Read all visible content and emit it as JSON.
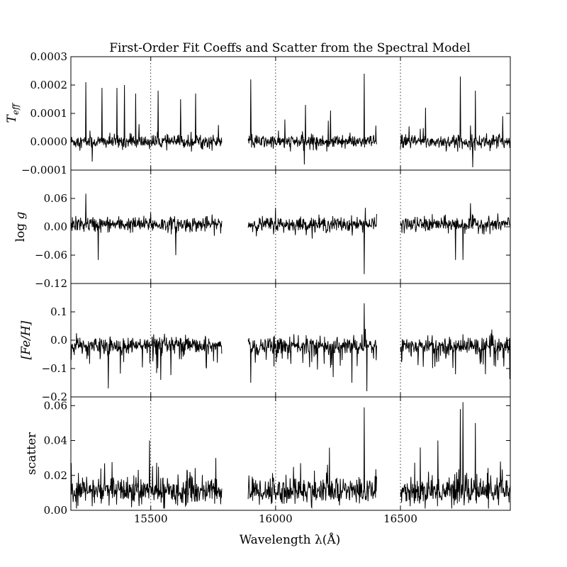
{
  "colors": {
    "line": "#000000",
    "background": "#ffffff"
  },
  "chart_data": {
    "type": "line",
    "title": "First-Order Fit Coeffs and Scatter from the Spectral Model",
    "xlabel": "Wavelength λ(Å)",
    "xlim": [
      15180,
      16940
    ],
    "x_ticks": [
      15500,
      16000,
      16500
    ],
    "x_tick_labels": [
      "15500",
      "16000",
      "16500"
    ],
    "vertical_dotted_lines": [
      15500,
      16000,
      16500
    ],
    "segments": [
      [
        15180,
        15785
      ],
      [
        15890,
        16405
      ],
      [
        16500,
        16940
      ]
    ],
    "panels": [
      {
        "ylabel": "T_eff",
        "ylim": [
          -0.0001,
          0.0003
        ],
        "yticks": [
          -0.0001,
          0.0,
          0.0001,
          0.0002,
          0.0003
        ],
        "ytick_labels": [
          "−0.0001",
          "0.0000",
          "0.0001",
          "0.0002",
          "0.0003"
        ],
        "baseline": 0.0,
        "noise": 1.2e-05,
        "spikes": [
          [
            15240,
            0.00021
          ],
          [
            15305,
            0.00019
          ],
          [
            15365,
            0.00019
          ],
          [
            15395,
            0.0002
          ],
          [
            15440,
            0.00017
          ],
          [
            15530,
            0.00018
          ],
          [
            15620,
            0.00015
          ],
          [
            15680,
            0.00017
          ],
          [
            15900,
            0.00022
          ],
          [
            16120,
            0.00013
          ],
          [
            16220,
            0.00011
          ],
          [
            16355,
            0.00024
          ],
          [
            16600,
            0.00012
          ],
          [
            16740,
            0.00023
          ],
          [
            16800,
            0.00018
          ],
          [
            16910,
            9e-05
          ]
        ],
        "dips": [
          [
            15265,
            -7e-05
          ],
          [
            16115,
            -8e-05
          ],
          [
            16790,
            -9e-05
          ]
        ]
      },
      {
        "ylabel": "log g",
        "ylim": [
          -0.12,
          0.12
        ],
        "yticks": [
          -0.12,
          -0.06,
          0.0,
          0.06
        ],
        "ytick_labels": [
          "−0.12",
          "−0.06",
          "0.00",
          "0.06"
        ],
        "baseline": 0.005,
        "noise": 0.008,
        "spikes": [
          [
            15240,
            0.07
          ],
          [
            15500,
            0.03
          ],
          [
            16000,
            0.04
          ],
          [
            16360,
            0.04
          ],
          [
            16780,
            0.05
          ]
        ],
        "dips": [
          [
            15290,
            -0.07
          ],
          [
            15600,
            -0.06
          ],
          [
            16355,
            -0.1
          ],
          [
            16720,
            -0.07
          ],
          [
            16750,
            -0.07
          ]
        ]
      },
      {
        "ylabel": "[Fe/H]",
        "ylim": [
          -0.2,
          0.2
        ],
        "yticks": [
          -0.2,
          -0.1,
          0.0,
          0.1
        ],
        "ytick_labels": [
          "−0.2",
          "−0.1",
          "0.0",
          "0.1"
        ],
        "baseline": -0.02,
        "noise": 0.015,
        "spikes": [
          [
            16355,
            0.13
          ],
          [
            16360,
            0.04
          ]
        ],
        "dips": [
          [
            15330,
            -0.17
          ],
          [
            15540,
            -0.14
          ],
          [
            15900,
            -0.15
          ],
          [
            16230,
            -0.13
          ],
          [
            16305,
            -0.15
          ],
          [
            16365,
            -0.18
          ],
          [
            16720,
            -0.12
          ],
          [
            16840,
            -0.12
          ]
        ]
      },
      {
        "ylabel": "scatter",
        "ylim": [
          0.0,
          0.065
        ],
        "yticks": [
          0.0,
          0.02,
          0.04,
          0.06
        ],
        "ytick_labels": [
          "0.00",
          "0.02",
          "0.04",
          "0.06"
        ],
        "baseline": 0.011,
        "noise": 0.004,
        "spikes": [
          [
            15495,
            0.04
          ],
          [
            15300,
            0.024
          ],
          [
            15760,
            0.03
          ],
          [
            16100,
            0.027
          ],
          [
            16355,
            0.059
          ],
          [
            16580,
            0.036
          ],
          [
            16650,
            0.04
          ],
          [
            16740,
            0.058
          ],
          [
            16750,
            0.062
          ],
          [
            16800,
            0.05
          ],
          [
            16900,
            0.028
          ]
        ],
        "dips": []
      }
    ]
  }
}
